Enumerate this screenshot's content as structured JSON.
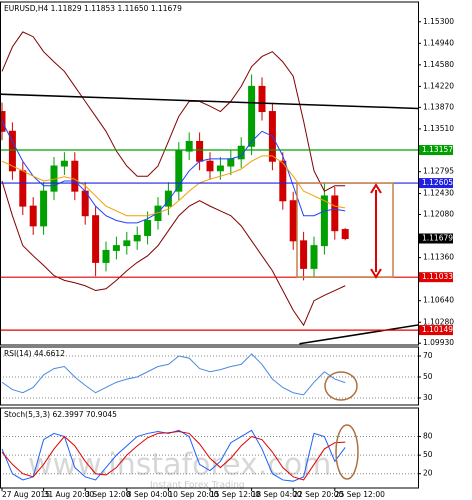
{
  "chart_data": [
    {
      "type": "candlestick",
      "title": "EURUSD,H4 1.11829 1.11853 1.11650 1.11679",
      "annotations": [
        "www.instaforex.com",
        "Instant Forex Trading"
      ],
      "up_color": "#00a000",
      "down_color": "#d00000",
      "open": [
        1.138,
        1.1347,
        1.1281,
        1.1222,
        1.1189,
        1.1247,
        1.1289,
        1.1297,
        1.1247,
        1.1206,
        1.1128,
        1.1148,
        1.1156,
        1.1164,
        1.1173,
        1.1198,
        1.1222,
        1.1247,
        1.1314,
        1.133,
        1.1297,
        1.1281,
        1.1289,
        1.1301,
        1.1322,
        1.1422,
        1.138,
        1.1297,
        1.1231,
        1.1164,
        1.1118,
        1.1156,
        1.1239,
        1.11829
      ],
      "high": [
        1.1395,
        1.1362,
        1.1296,
        1.1237,
        1.1262,
        1.1304,
        1.1312,
        1.1312,
        1.1262,
        1.1221,
        1.1163,
        1.1171,
        1.1179,
        1.1188,
        1.1213,
        1.1237,
        1.1262,
        1.1329,
        1.1345,
        1.1345,
        1.1312,
        1.1304,
        1.1316,
        1.1337,
        1.1442,
        1.1437,
        1.1395,
        1.1312,
        1.1246,
        1.1179,
        1.1171,
        1.1262,
        1.1254,
        1.11853
      ],
      "low": [
        1.1332,
        1.1266,
        1.1207,
        1.1174,
        1.1174,
        1.1232,
        1.1274,
        1.1232,
        1.1191,
        1.1105,
        1.1113,
        1.1133,
        1.1141,
        1.1149,
        1.1158,
        1.1183,
        1.1207,
        1.1232,
        1.1299,
        1.1282,
        1.1266,
        1.1266,
        1.1274,
        1.1286,
        1.1307,
        1.1365,
        1.1282,
        1.1216,
        1.1149,
        1.1098,
        1.1103,
        1.1141,
        1.1166,
        1.1165
      ],
      "close": [
        1.1347,
        1.1281,
        1.1222,
        1.1189,
        1.1247,
        1.1289,
        1.1297,
        1.1247,
        1.1206,
        1.1128,
        1.1148,
        1.1156,
        1.1164,
        1.1173,
        1.1198,
        1.1222,
        1.1247,
        1.1314,
        1.133,
        1.1297,
        1.1281,
        1.1289,
        1.1301,
        1.1322,
        1.1422,
        1.138,
        1.1297,
        1.1231,
        1.1164,
        1.1118,
        1.1156,
        1.1239,
        1.1181,
        1.11679
      ],
      "series": [
        {
          "color": "#800000",
          "values": [
            1.1447,
            1.1488,
            1.1513,
            1.1505,
            1.148,
            1.1463,
            1.1447,
            1.1422,
            1.1397,
            1.1372,
            1.1347,
            1.1314,
            1.1289,
            1.1272,
            1.1272,
            1.1289,
            1.133,
            1.1372,
            1.1397,
            1.1397,
            1.1389,
            1.138,
            1.1397,
            1.1422,
            1.1455,
            1.1472,
            1.148,
            1.1463,
            1.1439,
            1.1364,
            1.1281,
            1.1247,
            1.1256,
            1.1256
          ]
        },
        {
          "color": "#800000",
          "values": [
            1.1264,
            1.1206,
            1.1156,
            1.1139,
            1.1123,
            1.1106,
            1.1098,
            1.1094,
            1.1089,
            1.1081,
            1.1084,
            1.1098,
            1.1114,
            1.1128,
            1.1139,
            1.1156,
            1.1181,
            1.1206,
            1.1222,
            1.1231,
            1.1222,
            1.1214,
            1.1206,
            1.1189,
            1.1164,
            1.1139,
            1.1114,
            1.1081,
            1.1048,
            1.1023,
            1.1064,
            1.1073,
            1.1081,
            1.1089
          ]
        },
        {
          "color": "#2040ff",
          "values": [
            1.1364,
            1.133,
            1.1297,
            1.1272,
            1.1256,
            1.1256,
            1.1264,
            1.1264,
            1.1247,
            1.1222,
            1.1206,
            1.1198,
            1.1194,
            1.1194,
            1.1201,
            1.1211,
            1.1231,
            1.1256,
            1.1281,
            1.1297,
            1.1301,
            1.1301,
            1.1301,
            1.1306,
            1.133,
            1.1347,
            1.1339,
            1.1306,
            1.1256,
            1.1206,
            1.1206,
            1.1214,
            1.1217,
            1.1214
          ]
        },
        {
          "color": "#f0a000",
          "values": [
            1.1297,
            1.1289,
            1.1281,
            1.1272,
            1.1264,
            1.1267,
            1.1271,
            1.1267,
            1.1256,
            1.1239,
            1.1222,
            1.1214,
            1.1206,
            1.1206,
            1.1206,
            1.1211,
            1.1217,
            1.1231,
            1.1247,
            1.1261,
            1.1267,
            1.1272,
            1.1277,
            1.1284,
            1.1297,
            1.1306,
            1.1306,
            1.1294,
            1.1272,
            1.1247,
            1.1239,
            1.1231,
            1.1222,
            1.1219
          ]
        }
      ],
      "levels": [
        {
          "value": 1.13157,
          "label": "1.13157",
          "color": "#00a000"
        },
        {
          "value": 1.12605,
          "label": "1.12605",
          "color": "#2020e0"
        },
        {
          "value": 1.11033,
          "label": "1.11033",
          "color": "#e00000"
        },
        {
          "value": 1.10149,
          "label": "1.10149",
          "color": "#e00000"
        }
      ],
      "last_price": {
        "value": 1.11679,
        "label": "1.11679"
      },
      "trendlines": [
        {
          "color": "#000000",
          "x": [
            -0.2,
            42
          ],
          "values": [
            1.1409,
            1.1384
          ]
        },
        {
          "color": "#000000",
          "x": [
            28.6,
            42
          ],
          "values": [
            1.0992,
            1.1029
          ]
        }
      ],
      "ylim": [
        1.099,
        1.1563
      ],
      "yticks": [
        {
          "value": 1.153,
          "label": "1.15300"
        },
        {
          "value": 1.1494,
          "label": "1.14940"
        },
        {
          "value": 1.1458,
          "label": "1.14580"
        },
        {
          "value": 1.1422,
          "label": "1.14220"
        },
        {
          "value": 1.1387,
          "label": "1.13870"
        },
        {
          "value": 1.1351,
          "label": "1.13510"
        },
        {
          "value": 1.12795,
          "label": "1.12795"
        },
        {
          "value": 1.1243,
          "label": "1.12430"
        },
        {
          "value": 1.1208,
          "label": "1.12080"
        },
        {
          "value": 1.1136,
          "label": "1.11360"
        },
        {
          "value": 1.1064,
          "label": "1.10640"
        },
        {
          "value": 1.1028,
          "label": "1.10280"
        },
        {
          "value": 1.0993,
          "label": "1.09930"
        }
      ]
    },
    {
      "type": "line",
      "title": "RSI(14) 44.6612",
      "grid": true,
      "series": [
        {
          "color": "#4a8ae0",
          "values": [
            45,
            38,
            35,
            40,
            52,
            58,
            60,
            50,
            42,
            35,
            40,
            45,
            48,
            50,
            55,
            60,
            62,
            70,
            68,
            58,
            55,
            57,
            60,
            62,
            72,
            62,
            48,
            40,
            35,
            33,
            45,
            55,
            48,
            44.6612
          ]
        }
      ],
      "ylim": [
        23.3,
        78.6
      ],
      "yticks": [
        70,
        50,
        30
      ]
    },
    {
      "type": "line",
      "title": "Stoch(5,3,3) 62.3997 70.9045",
      "grid": true,
      "series": [
        {
          "color": "#1e60ff",
          "values": [
            60,
            20,
            10,
            15,
            75,
            85,
            80,
            30,
            15,
            10,
            30,
            50,
            65,
            80,
            85,
            88,
            85,
            90,
            80,
            35,
            25,
            40,
            70,
            80,
            90,
            60,
            20,
            10,
            8,
            15,
            85,
            80,
            40,
            62.3997
          ]
        },
        {
          "color": "#e00000",
          "values": [
            55,
            35,
            20,
            15,
            35,
            60,
            80,
            65,
            40,
            20,
            18,
            30,
            50,
            65,
            78,
            85,
            86,
            88,
            85,
            68,
            45,
            30,
            45,
            65,
            80,
            75,
            55,
            30,
            15,
            10,
            35,
            60,
            70,
            70.9045
          ]
        }
      ],
      "ylim": [
        -3,
        126
      ],
      "yticks": [
        80,
        50,
        20
      ],
      "categories": [
        "27 Aug 2015",
        null,
        null,
        null,
        "31 Aug 20:00",
        null,
        null,
        null,
        "3 Sep 12:00",
        null,
        null,
        null,
        "8 Sep 04:00",
        null,
        null,
        null,
        "10 Sep 20:00",
        null,
        null,
        null,
        "15 Sep 12:00",
        null,
        null,
        null,
        "18 Sep 04:00",
        null,
        null,
        null,
        "22 Sep 20:00",
        null,
        null,
        null,
        "25 Sep 12:00",
        null
      ]
    }
  ]
}
